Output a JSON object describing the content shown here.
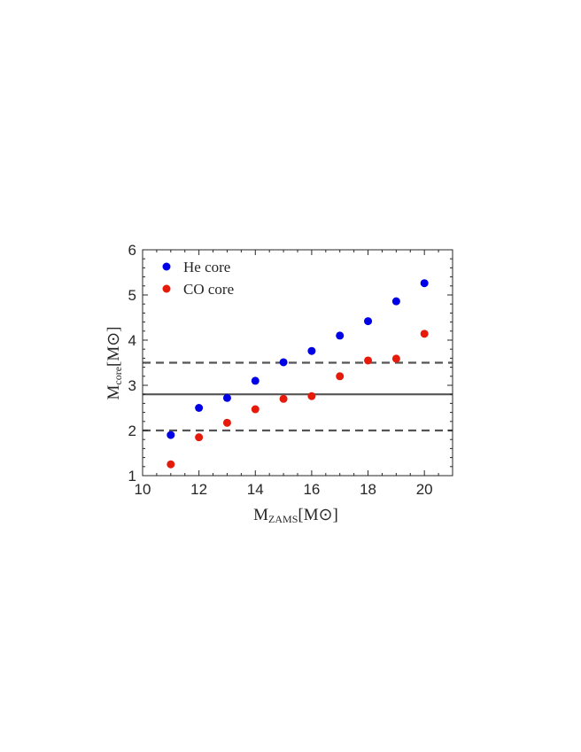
{
  "chart_data": {
    "type": "scatter",
    "xlabel": "M",
    "xlabel_sub": "ZAMS",
    "xlabel_unit": "[M",
    "ylabel": "M",
    "ylabel_sub": "core",
    "ylabel_unit": "[M",
    "sun_symbol": "⊙",
    "unit_close": "]",
    "xlim": [
      10,
      21
    ],
    "ylim": [
      1,
      6
    ],
    "xticks": [
      10,
      12,
      14,
      16,
      18,
      20
    ],
    "yticks": [
      1,
      2,
      3,
      4,
      5,
      6
    ],
    "legend_position": "top-left",
    "series": [
      {
        "name": "He core",
        "color": "#0000e6",
        "x": [
          11,
          12,
          13,
          14,
          15,
          16,
          17,
          18,
          19,
          20
        ],
        "y": [
          1.9,
          2.5,
          2.72,
          3.1,
          3.51,
          3.76,
          4.1,
          4.42,
          4.86,
          5.26
        ]
      },
      {
        "name": "CO core",
        "color": "#e61a0a",
        "x": [
          11,
          12,
          13,
          14,
          15,
          16,
          17,
          18,
          19,
          20
        ],
        "y": [
          1.25,
          1.85,
          2.17,
          2.47,
          2.7,
          2.76,
          3.2,
          3.55,
          3.59,
          4.14
        ]
      }
    ],
    "hlines": [
      {
        "y": 3.5,
        "style": "dashed",
        "color": "#555555"
      },
      {
        "y": 2.8,
        "style": "solid",
        "color": "#555555"
      },
      {
        "y": 2.0,
        "style": "dashed",
        "color": "#555555"
      }
    ]
  }
}
